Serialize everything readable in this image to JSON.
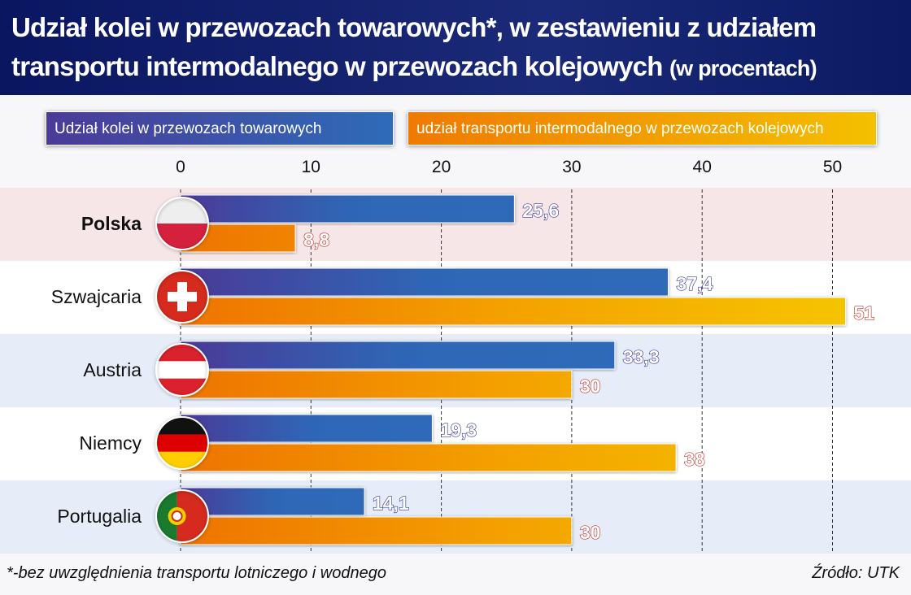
{
  "title": "Udział kolei w przewozach towarowych*, w zestawieniu z udziałem transportu intermodalnego w przewozach kolejowych",
  "title_suffix": "(w procentach)",
  "footnote": "*-bez uwzględnienia transportu lotniczego i wodnego",
  "source": "Źródło: UTK",
  "chart_data": {
    "type": "bar",
    "orientation": "horizontal",
    "categories": [
      "Polska",
      "Szwajcaria",
      "Austria",
      "Niemcy",
      "Portugalia"
    ],
    "series": [
      {
        "name": "Udział kolei w przewozach towarowych",
        "values": [
          25.6,
          37.4,
          33.3,
          19.3,
          14.1
        ],
        "labels": [
          "25,6",
          "37,4",
          "33,3",
          "19,3",
          "14,1"
        ],
        "color": "#2e6bb8"
      },
      {
        "name": "udział transportu intermodalnego w przewozach kolejowych",
        "values": [
          8.8,
          51,
          30,
          38,
          30
        ],
        "labels": [
          "8,8",
          "51",
          "30",
          "38",
          "30"
        ],
        "color": "#f4a800"
      }
    ],
    "xticks": [
      "0",
      "10",
      "20",
      "30",
      "40",
      "50"
    ],
    "xlim": [
      0,
      55
    ],
    "grid": "vertical dashed",
    "legend": "top",
    "row_colors": [
      "#f7e6e8",
      "#ffffff",
      "#e6edf8",
      "#ffffff",
      "#e6edf8"
    ],
    "flags": [
      "poland",
      "switzerland",
      "austria",
      "germany",
      "portugal"
    ]
  }
}
